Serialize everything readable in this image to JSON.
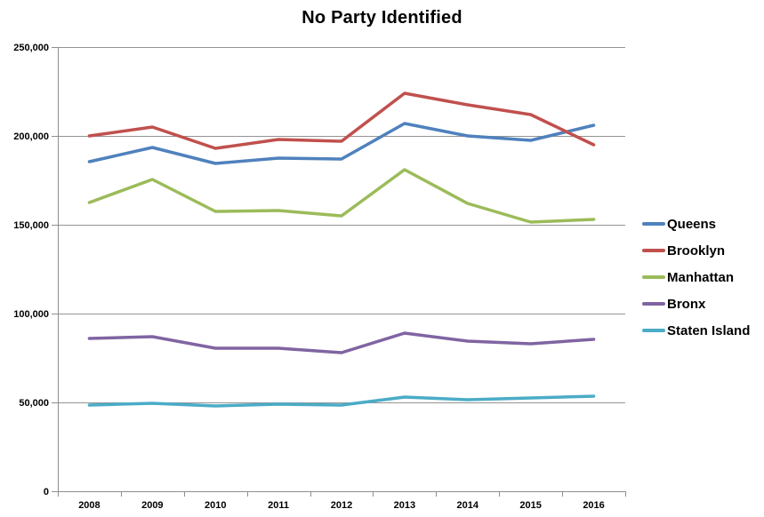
{
  "chart_data": {
    "type": "line",
    "title": "No Party Identified",
    "x_labels": [
      "2008",
      "2009",
      "2010",
      "2011",
      "2012",
      "2013",
      "2014",
      "2015",
      "2016"
    ],
    "series": [
      {
        "name": "Queens",
        "color": "#4F81BD",
        "values": [
          185500,
          193500,
          184500,
          187500,
          187000,
          207000,
          200000,
          197500,
          206000
        ]
      },
      {
        "name": "Brooklyn",
        "color": "#C0504D",
        "values": [
          200000,
          205000,
          193000,
          198000,
          197000,
          224000,
          217500,
          212000,
          195000
        ]
      },
      {
        "name": "Manhattan",
        "color": "#9BBB59",
        "values": [
          162500,
          175500,
          157500,
          158000,
          155000,
          181000,
          162000,
          151500,
          153000
        ]
      },
      {
        "name": "Bronx",
        "color": "#8064A2",
        "values": [
          86000,
          87000,
          80500,
          80500,
          78000,
          89000,
          84500,
          83000,
          85500
        ]
      },
      {
        "name": "Staten Island",
        "color": "#4BACC6",
        "values": [
          48500,
          49500,
          48000,
          49000,
          48500,
          53000,
          51500,
          52500,
          53500
        ]
      }
    ],
    "yticks": [
      {
        "value": 0,
        "label": "0"
      },
      {
        "value": 50000,
        "label": "50,000"
      },
      {
        "value": 100000,
        "label": "100,000"
      },
      {
        "value": 150000,
        "label": "150,000"
      },
      {
        "value": 200000,
        "label": "200,000"
      },
      {
        "value": 250000,
        "label": "250,000"
      }
    ],
    "ylim": [
      0,
      250000
    ],
    "grid": true,
    "legend_position": "right",
    "axis_color": "#8E8E8E",
    "gridline_color": "#949494",
    "background_color": "#FFFFFF",
    "title_color": "#000000"
  }
}
